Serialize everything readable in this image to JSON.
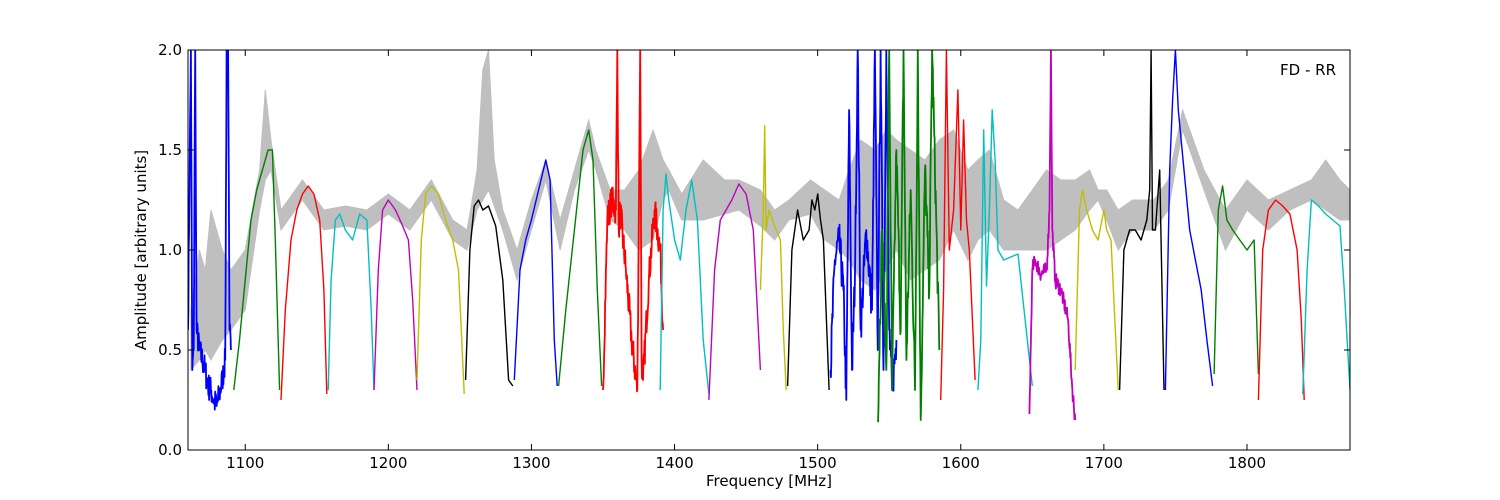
{
  "chart_data": {
    "type": "line",
    "title": "",
    "annotation": "FD - RR",
    "xlabel": "Frequency [MHz]",
    "ylabel": "Amplitude [arbitrary units]",
    "xlim": [
      1060,
      1872
    ],
    "ylim": [
      0.0,
      2.0
    ],
    "xticks": [
      1100,
      1200,
      1300,
      1400,
      1500,
      1600,
      1700,
      1800
    ],
    "yticks": [
      0.0,
      0.5,
      1.0,
      1.5,
      2.0
    ],
    "ytick_labels": [
      "0.0",
      "0.5",
      "1.0",
      "1.5",
      "2.0"
    ],
    "grid": false,
    "reference_band": {
      "color": "#bfbfbf",
      "x": [
        1062,
        1068,
        1072,
        1076,
        1080,
        1084,
        1090,
        1100,
        1110,
        1114,
        1118,
        1125,
        1140,
        1155,
        1170,
        1185,
        1200,
        1215,
        1230,
        1245,
        1255,
        1262,
        1266,
        1270,
        1274,
        1280,
        1290,
        1300,
        1310,
        1320,
        1330,
        1340,
        1345,
        1355,
        1365,
        1375,
        1385,
        1392,
        1396,
        1405,
        1420,
        1435,
        1445,
        1460,
        1470,
        1480,
        1495,
        1505,
        1515,
        1522,
        1530,
        1540,
        1548,
        1555,
        1565,
        1575,
        1585,
        1595,
        1605,
        1612,
        1620,
        1630,
        1640,
        1650,
        1660,
        1670,
        1680,
        1690,
        1696,
        1702,
        1710,
        1720,
        1735,
        1745,
        1755,
        1770,
        1785,
        1800,
        1815,
        1830,
        1845,
        1855,
        1865,
        1872
      ],
      "lo": [
        0.4,
        0.45,
        0.5,
        0.45,
        0.5,
        0.55,
        0.6,
        0.7,
        1.2,
        1.35,
        1.4,
        1.1,
        1.25,
        1.1,
        1.12,
        1.1,
        1.18,
        1.1,
        1.25,
        1.05,
        1.0,
        1.2,
        1.25,
        1.3,
        1.22,
        1.1,
        0.85,
        1.1,
        1.35,
        1.0,
        1.3,
        1.5,
        1.4,
        1.15,
        1.1,
        1.0,
        1.05,
        1.25,
        1.3,
        1.15,
        1.15,
        1.18,
        1.2,
        1.12,
        1.05,
        1.15,
        1.18,
        1.05,
        1.0,
        0.95,
        0.85,
        0.8,
        0.9,
        1.0,
        0.85,
        0.9,
        0.95,
        1.1,
        0.95,
        1.05,
        1.1,
        1.0,
        1.0,
        1.0,
        1.0,
        1.05,
        1.1,
        1.2,
        1.25,
        1.15,
        1.0,
        1.1,
        1.1,
        1.2,
        1.6,
        1.3,
        1.0,
        1.2,
        1.1,
        1.2,
        1.25,
        1.2,
        1.15,
        1.15
      ],
      "hi": [
        0.7,
        1.0,
        0.9,
        1.2,
        1.1,
        1.0,
        0.9,
        1.0,
        1.4,
        1.8,
        1.55,
        1.2,
        1.35,
        1.2,
        1.22,
        1.2,
        1.28,
        1.2,
        1.35,
        1.15,
        1.1,
        1.4,
        1.9,
        2.0,
        1.45,
        1.2,
        1.0,
        1.25,
        1.45,
        1.15,
        1.4,
        1.65,
        1.5,
        1.3,
        1.3,
        1.4,
        1.6,
        1.45,
        1.4,
        1.28,
        1.45,
        1.35,
        1.35,
        1.3,
        1.2,
        1.25,
        1.35,
        1.3,
        1.25,
        1.4,
        1.55,
        1.5,
        1.6,
        1.55,
        1.5,
        1.45,
        1.55,
        1.6,
        1.4,
        1.45,
        1.5,
        1.25,
        1.2,
        1.3,
        1.4,
        1.35,
        1.35,
        1.4,
        1.3,
        1.3,
        1.2,
        1.25,
        1.25,
        1.35,
        1.7,
        1.4,
        1.2,
        1.35,
        1.25,
        1.3,
        1.35,
        1.45,
        1.35,
        1.3
      ]
    },
    "series": [
      {
        "color": "#0000ff",
        "x": [
          1060,
          1062,
          1063,
          1064,
          1065,
          1066,
          1068,
          1070,
          1072,
          1074,
          1076,
          1078,
          1080,
          1082,
          1084,
          1086,
          1087,
          1088,
          1089,
          1090
        ],
        "y": [
          0.6,
          2.0,
          0.4,
          0.5,
          2.0,
          0.6,
          0.5,
          0.45,
          0.4,
          0.32,
          0.3,
          0.25,
          0.22,
          0.28,
          0.35,
          0.45,
          2.0,
          2.0,
          0.6,
          0.5
        ],
        "noise": 0.07
      },
      {
        "color": "#008000",
        "x": [
          1092,
          1096,
          1100,
          1104,
          1108,
          1112,
          1116,
          1119,
          1121,
          1124
        ],
        "y": [
          0.3,
          0.55,
          0.85,
          1.15,
          1.3,
          1.4,
          1.5,
          1.5,
          1.05,
          0.3
        ]
      },
      {
        "color": "#ff0000",
        "x": [
          1125,
          1128,
          1132,
          1136,
          1140,
          1144,
          1148,
          1152,
          1155,
          1157
        ],
        "y": [
          0.25,
          0.7,
          1.05,
          1.2,
          1.28,
          1.32,
          1.28,
          1.15,
          0.8,
          0.28
        ]
      },
      {
        "color": "#00bfbf",
        "x": [
          1158,
          1160,
          1163,
          1166,
          1170,
          1175,
          1180,
          1185,
          1188,
          1190
        ],
        "y": [
          0.3,
          0.85,
          1.15,
          1.18,
          1.1,
          1.05,
          1.18,
          1.15,
          0.7,
          0.3
        ]
      },
      {
        "color": "#bf00bf",
        "x": [
          1190,
          1193,
          1196,
          1200,
          1205,
          1210,
          1214,
          1217,
          1220
        ],
        "y": [
          0.3,
          0.9,
          1.2,
          1.25,
          1.2,
          1.12,
          1.05,
          0.75,
          0.3
        ]
      },
      {
        "color": "#bfbf00",
        "x": [
          1220,
          1223,
          1226,
          1230,
          1235,
          1240,
          1245,
          1249,
          1253
        ],
        "y": [
          0.35,
          1.05,
          1.28,
          1.32,
          1.28,
          1.15,
          1.05,
          0.9,
          0.28
        ]
      },
      {
        "color": "#000000",
        "x": [
          1254,
          1257,
          1260,
          1263,
          1266,
          1270,
          1275,
          1280,
          1284,
          1287
        ],
        "y": [
          0.35,
          1.0,
          1.22,
          1.25,
          1.2,
          1.22,
          1.12,
          0.85,
          0.35,
          0.32
        ]
      },
      {
        "color": "#0000ff",
        "x": [
          1288,
          1292,
          1296,
          1300,
          1305,
          1310,
          1313,
          1316,
          1318
        ],
        "y": [
          0.35,
          0.9,
          1.05,
          1.15,
          1.3,
          1.45,
          1.35,
          0.55,
          0.32
        ]
      },
      {
        "color": "#008000",
        "x": [
          1319,
          1324,
          1330,
          1336,
          1340,
          1343,
          1346,
          1349
        ],
        "y": [
          0.32,
          0.7,
          1.1,
          1.5,
          1.6,
          1.45,
          0.8,
          0.32
        ]
      },
      {
        "color": "#ff0000",
        "x": [
          1350,
          1353,
          1356,
          1359,
          1360,
          1361,
          1362,
          1366,
          1370,
          1374,
          1376,
          1377,
          1378,
          1382,
          1386,
          1390,
          1392
        ],
        "y": [
          0.3,
          1.15,
          1.25,
          1.2,
          2.0,
          1.1,
          1.2,
          0.9,
          0.55,
          0.3,
          2.0,
          0.45,
          0.35,
          0.85,
          1.2,
          1.0,
          0.6
        ],
        "noise": 0.08
      },
      {
        "color": "#00bfbf",
        "x": [
          1390,
          1392,
          1394,
          1396,
          1400,
          1404,
          1408,
          1412,
          1416,
          1420,
          1424
        ],
        "y": [
          0.3,
          1.2,
          1.38,
          1.25,
          1.05,
          0.95,
          1.2,
          1.35,
          1.15,
          0.55,
          0.28
        ]
      },
      {
        "color": "#bf00bf",
        "x": [
          1424,
          1428,
          1432,
          1436,
          1440,
          1445,
          1450,
          1455,
          1460
        ],
        "y": [
          0.25,
          0.9,
          1.15,
          1.2,
          1.25,
          1.33,
          1.28,
          1.1,
          0.4
        ]
      },
      {
        "color": "#bfbf00",
        "x": [
          1460,
          1462,
          1463,
          1464,
          1466,
          1470,
          1474,
          1476,
          1478
        ],
        "y": [
          0.8,
          1.2,
          1.62,
          1.1,
          1.2,
          1.12,
          1.05,
          0.6,
          0.3
        ]
      },
      {
        "color": "#000000",
        "x": [
          1479,
          1482,
          1486,
          1490,
          1494,
          1496,
          1498,
          1500,
          1502,
          1504,
          1508
        ],
        "y": [
          0.32,
          1.0,
          1.2,
          1.05,
          1.1,
          1.25,
          1.2,
          1.28,
          1.15,
          1.05,
          0.3
        ]
      },
      {
        "color": "#0000ff",
        "x": [
          1509,
          1512,
          1515,
          1518,
          1520,
          1522,
          1524,
          1526,
          1528,
          1530,
          1534,
          1538,
          1540,
          1542,
          1544,
          1546,
          1548,
          1550,
          1552,
          1555
        ],
        "y": [
          0.4,
          0.95,
          1.05,
          0.8,
          0.25,
          1.7,
          0.4,
          0.85,
          2.0,
          0.6,
          1.1,
          0.7,
          2.0,
          0.5,
          2.0,
          0.4,
          2.0,
          0.6,
          0.3,
          0.55
        ],
        "noise": 0.1
      },
      {
        "color": "#008000",
        "x": [
          1542,
          1545,
          1548,
          1550,
          1552,
          1555,
          1558,
          1560,
          1562,
          1565,
          1568,
          1570,
          1572,
          1575,
          1578,
          1580,
          1585
        ],
        "y": [
          0.15,
          1.1,
          0.4,
          2.0,
          0.3,
          1.5,
          0.6,
          2.0,
          0.45,
          1.3,
          0.3,
          2.0,
          0.15,
          1.4,
          0.8,
          2.0,
          0.5
        ],
        "noise": 0.1
      },
      {
        "color": "#ff0000",
        "x": [
          1586,
          1588,
          1590,
          1592,
          1595,
          1598,
          1600,
          1602,
          1604,
          1606,
          1610
        ],
        "y": [
          0.25,
          0.8,
          2.0,
          1.0,
          1.2,
          1.8,
          1.1,
          1.65,
          1.15,
          1.0,
          0.35
        ]
      },
      {
        "color": "#00bfbf",
        "x": [
          1612,
          1614,
          1616,
          1618,
          1620,
          1622,
          1624,
          1626,
          1630,
          1640,
          1650
        ],
        "y": [
          0.3,
          0.55,
          1.6,
          0.82,
          1.2,
          1.7,
          1.45,
          1.0,
          0.95,
          0.98,
          0.32
        ]
      },
      {
        "color": "#bf00bf",
        "x": [
          1648,
          1650,
          1652,
          1656,
          1660,
          1662,
          1663,
          1664,
          1666,
          1670,
          1675,
          1678,
          1680
        ],
        "y": [
          0.18,
          0.9,
          0.95,
          0.88,
          0.9,
          1.2,
          2.0,
          1.1,
          0.85,
          0.8,
          0.65,
          0.3,
          0.15
        ],
        "noise": 0.04
      },
      {
        "color": "#bfbf00",
        "x": [
          1680,
          1683,
          1685,
          1688,
          1692,
          1696,
          1700,
          1702,
          1705,
          1710
        ],
        "y": [
          0.4,
          1.2,
          1.3,
          1.2,
          1.1,
          1.05,
          1.2,
          1.1,
          1.05,
          0.3
        ]
      },
      {
        "color": "#000000",
        "x": [
          1711,
          1714,
          1718,
          1722,
          1726,
          1730,
          1732,
          1733,
          1734,
          1736,
          1739,
          1742
        ],
        "y": [
          0.3,
          1.0,
          1.1,
          1.1,
          1.05,
          1.15,
          1.3,
          2.0,
          1.1,
          1.1,
          1.4,
          0.3
        ]
      },
      {
        "color": "#0000ff",
        "x": [
          1743,
          1746,
          1748,
          1750,
          1752,
          1756,
          1760,
          1764,
          1768,
          1772,
          1776
        ],
        "y": [
          0.3,
          1.4,
          1.75,
          2.0,
          1.7,
          1.4,
          1.1,
          0.95,
          0.8,
          0.55,
          0.32
        ]
      },
      {
        "color": "#008000",
        "x": [
          1777,
          1780,
          1783,
          1786,
          1790,
          1795,
          1800,
          1805,
          1808
        ],
        "y": [
          0.38,
          1.2,
          1.32,
          1.15,
          1.1,
          1.05,
          1.0,
          1.05,
          0.38
        ]
      },
      {
        "color": "#ff0000",
        "x": [
          1808,
          1811,
          1815,
          1820,
          1825,
          1830,
          1835,
          1838,
          1840
        ],
        "y": [
          0.25,
          1.0,
          1.2,
          1.25,
          1.22,
          1.18,
          1.0,
          0.65,
          0.25
        ]
      },
      {
        "color": "#00bfbf",
        "x": [
          1839,
          1842,
          1845,
          1850,
          1855,
          1860,
          1865,
          1868,
          1872
        ],
        "y": [
          0.28,
          0.9,
          1.25,
          1.22,
          1.18,
          1.15,
          1.12,
          0.8,
          0.3
        ]
      }
    ]
  }
}
